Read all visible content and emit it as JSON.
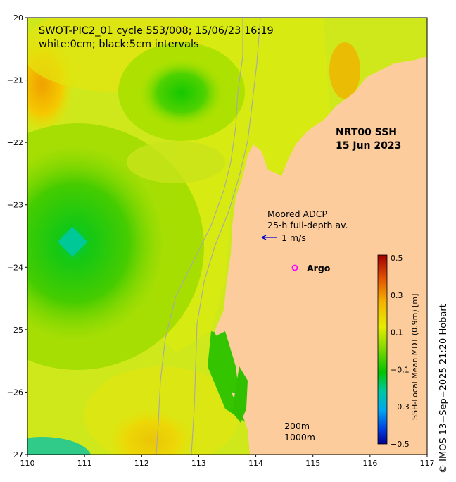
{
  "header": {
    "title_line1": "SWOT-PIC2_01 cycle 553/008; 15/06/23 16:19",
    "title_line2": "white:0cm; black:5cm intervals"
  },
  "product": {
    "name": "NRT00 SSH",
    "date": "15 Jun 2023"
  },
  "legend": {
    "adcp_title": "Moored ADCP",
    "adcp_subtitle": "25-h full-depth av.",
    "arrow_label": "1 m/s",
    "argo_label": "Argo",
    "arrow_color": "#0000cc",
    "argo_color": "#ff00ff"
  },
  "isobaths": {
    "label_200": "200m",
    "label_1000": "1000m"
  },
  "colorbar": {
    "label": "SSH-Local Mean MDT (0.9m) [m]",
    "ticks": [
      "0.5",
      "0.3",
      "0.1",
      "−0.1",
      "−0.3",
      "−0.5"
    ],
    "min": -0.5,
    "max": 0.5
  },
  "axes": {
    "x_ticks": [
      "110",
      "111",
      "112",
      "113",
      "114",
      "115",
      "116",
      "117"
    ],
    "y_ticks": [
      "−20",
      "−21",
      "−22",
      "−23",
      "−24",
      "−25",
      "−26",
      "−27"
    ],
    "lon_range": [
      110,
      117
    ],
    "lat_range": [
      -27,
      -20
    ]
  },
  "credit": "© IMOS 13−Sep−2025 21:20 Hobart",
  "colors": {
    "land": "#fccc9c",
    "background_field": "#d2ec1c",
    "isobath": "#a8a8a8"
  }
}
